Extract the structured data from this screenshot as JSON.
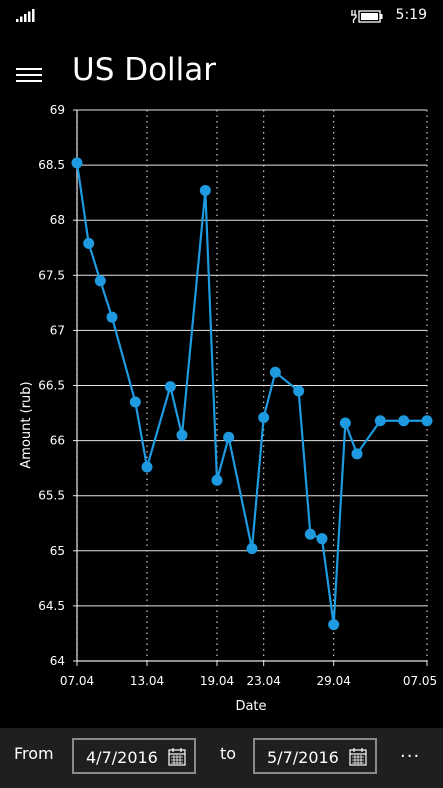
{
  "status": {
    "time": "5:19"
  },
  "header": {
    "title": "US Dollar"
  },
  "chart_data": {
    "type": "line",
    "xlabel": "Date",
    "ylabel": "Amount (rub)",
    "ylim": [
      64,
      69
    ],
    "yticks": [
      "64",
      "64.5",
      "65",
      "65.5",
      "66",
      "66.5",
      "67",
      "67.5",
      "68",
      "68.5",
      "69"
    ],
    "xtick_labels": [
      "07.04",
      "13.04",
      "19.04",
      "23.04",
      "29.04",
      "07.05"
    ],
    "series": [
      {
        "color": "#1e9be0",
        "dates": [
          "2016-04-07",
          "2016-04-08",
          "2016-04-09",
          "2016-04-10",
          "2016-04-12",
          "2016-04-13",
          "2016-04-15",
          "2016-04-16",
          "2016-04-18",
          "2016-04-19",
          "2016-04-20",
          "2016-04-22",
          "2016-04-23",
          "2016-04-24",
          "2016-04-26",
          "2016-04-27",
          "2016-04-28",
          "2016-04-29",
          "2016-04-30",
          "2016-05-01",
          "2016-05-03",
          "2016-05-05",
          "2016-05-07"
        ],
        "values": [
          68.52,
          67.79,
          67.45,
          67.12,
          66.35,
          65.76,
          66.49,
          66.05,
          68.27,
          65.64,
          66.03,
          65.02,
          66.21,
          66.62,
          66.45,
          65.15,
          65.11,
          64.33,
          66.16,
          65.88,
          66.18,
          66.18,
          66.18
        ]
      }
    ]
  },
  "footer": {
    "from_label": "From",
    "from_date": "4/7/2016",
    "to_label": "to",
    "to_date": "5/7/2016",
    "more_label": "···"
  }
}
